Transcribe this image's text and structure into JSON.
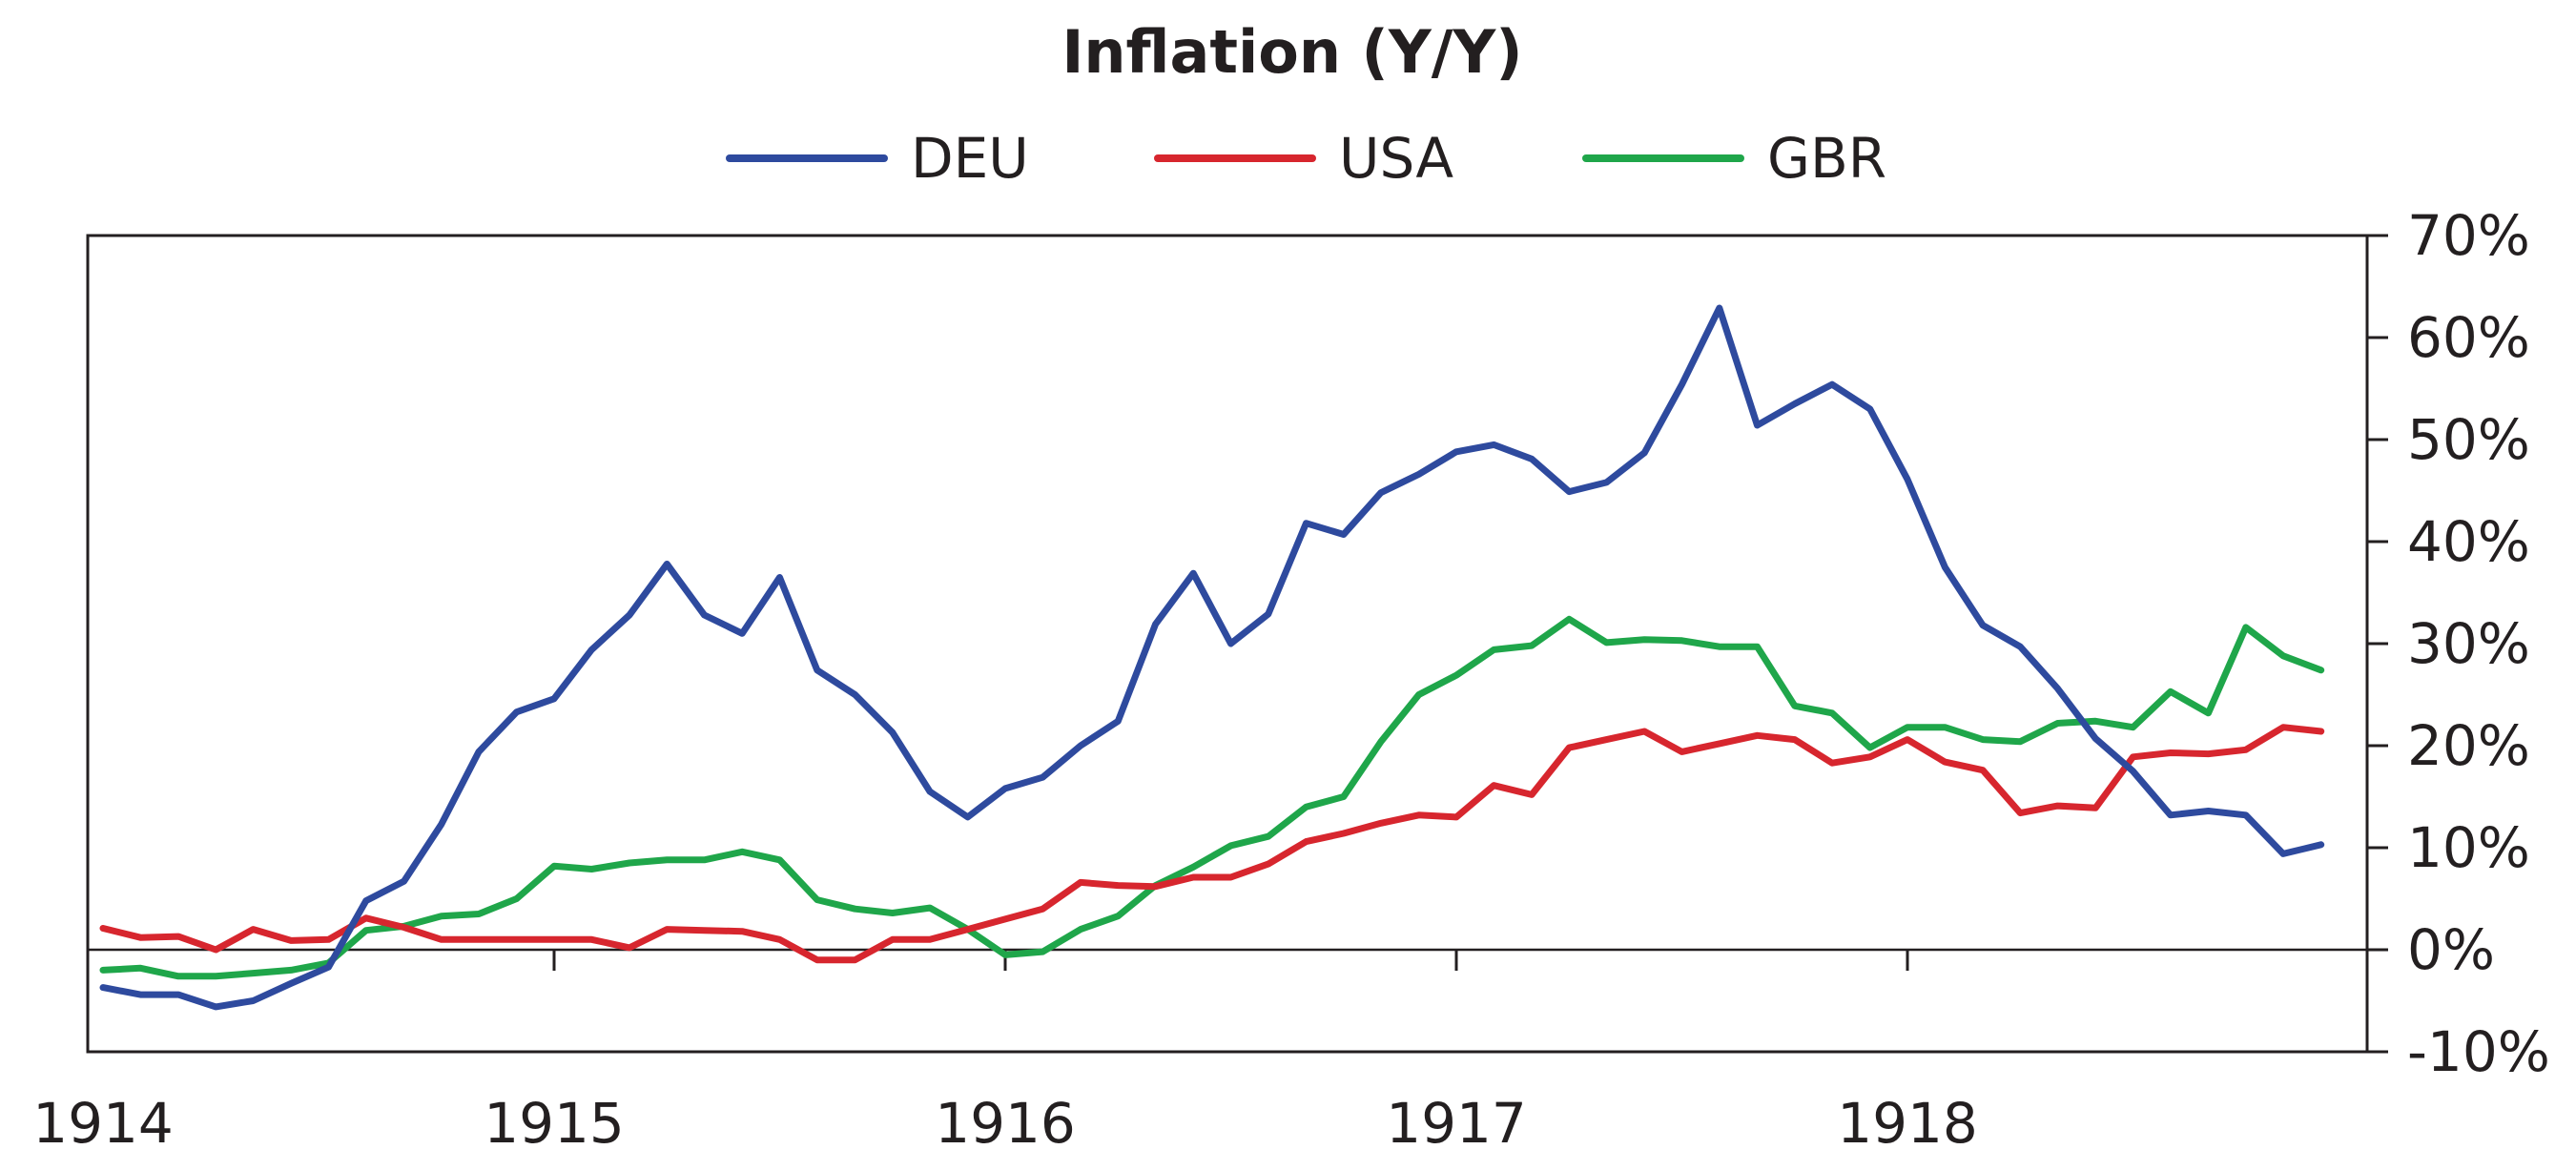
{
  "chart_data": {
    "type": "line",
    "title": "Inflation (Y/Y)",
    "xlabel": "",
    "ylabel": "",
    "x_ticks": [
      "1914",
      "1915",
      "1916",
      "1917",
      "1918"
    ],
    "y_ticks": [
      "70%",
      "60%",
      "50%",
      "40%",
      "30%",
      "20%",
      "10%",
      "0%",
      "-10%"
    ],
    "ylim": [
      -10,
      70
    ],
    "xlim": [
      1914,
      1918.92
    ],
    "y_axis_side": "right",
    "legend_position": "top-center",
    "grid": false,
    "zero_line": true,
    "x": [
      1914.0,
      1914.083,
      1914.167,
      1914.25,
      1914.333,
      1914.417,
      1914.5,
      1914.583,
      1914.667,
      1914.75,
      1914.833,
      1914.917,
      1915.0,
      1915.083,
      1915.167,
      1915.25,
      1915.333,
      1915.417,
      1915.5,
      1915.583,
      1915.667,
      1915.75,
      1915.833,
      1915.917,
      1916.0,
      1916.083,
      1916.167,
      1916.25,
      1916.333,
      1916.417,
      1916.5,
      1916.583,
      1916.667,
      1916.75,
      1916.833,
      1916.917,
      1917.0,
      1917.083,
      1917.167,
      1917.25,
      1917.333,
      1917.417,
      1917.5,
      1917.583,
      1917.667,
      1917.75,
      1917.833,
      1917.917,
      1918.0,
      1918.083,
      1918.167,
      1918.25,
      1918.333,
      1918.417,
      1918.5,
      1918.583,
      1918.667,
      1918.75,
      1918.833,
      1918.917
    ],
    "series": [
      {
        "name": "DEU",
        "color": "#2e4a9e",
        "values": [
          -3.7,
          -4.4,
          -4.4,
          -5.6,
          -5.0,
          -3.3,
          -1.7,
          4.8,
          6.7,
          12.3,
          19.4,
          23.3,
          24.6,
          29.4,
          32.8,
          37.8,
          32.8,
          31.0,
          36.5,
          27.4,
          25.0,
          21.3,
          15.5,
          13.0,
          15.8,
          16.9,
          20.0,
          22.4,
          31.9,
          36.9,
          30.0,
          32.9,
          41.8,
          40.7,
          44.8,
          46.6,
          48.8,
          49.5,
          48.1,
          44.9,
          45.8,
          48.7,
          55.4,
          62.9,
          51.4,
          53.5,
          55.4,
          53.0,
          46.1,
          37.5,
          31.8,
          29.7,
          25.6,
          20.7,
          17.5,
          13.2,
          13.6,
          13.2,
          9.4,
          10.3
        ]
      },
      {
        "name": "USA",
        "color": "#d7262e",
        "values": [
          2.1,
          1.2,
          1.3,
          0.0,
          2.0,
          0.9,
          1.0,
          3.1,
          2.2,
          1.0,
          1.0,
          1.0,
          1.0,
          1.0,
          0.2,
          2.0,
          1.9,
          1.8,
          1.0,
          -1.0,
          -1.0,
          1.0,
          1.0,
          2.0,
          3.0,
          4.0,
          6.6,
          6.3,
          6.2,
          7.1,
          7.1,
          8.4,
          10.6,
          11.4,
          12.4,
          13.2,
          13.0,
          16.1,
          15.2,
          19.8,
          20.6,
          21.4,
          19.4,
          20.2,
          21.0,
          20.6,
          18.3,
          18.9,
          20.6,
          18.4,
          17.6,
          13.4,
          14.1,
          13.9,
          18.9,
          19.3,
          19.2,
          19.6,
          21.8,
          21.4
        ]
      },
      {
        "name": "GBR",
        "color": "#1fa64a",
        "values": [
          -2.0,
          -1.8,
          -2.6,
          -2.6,
          -2.3,
          -2.0,
          -1.3,
          1.9,
          2.3,
          3.3,
          3.5,
          5.0,
          8.2,
          7.9,
          8.5,
          8.8,
          8.8,
          9.6,
          8.8,
          4.9,
          4.0,
          3.6,
          4.1,
          2.0,
          -0.5,
          -0.2,
          2.0,
          3.3,
          6.3,
          8.1,
          10.2,
          11.1,
          14.0,
          15.0,
          20.4,
          25.0,
          26.9,
          29.4,
          29.8,
          32.4,
          30.1,
          30.4,
          30.3,
          29.7,
          29.7,
          23.9,
          23.2,
          19.8,
          21.8,
          21.8,
          20.6,
          20.4,
          22.2,
          22.4,
          21.8,
          25.3,
          23.2,
          31.6,
          28.8,
          27.4
        ]
      }
    ]
  }
}
